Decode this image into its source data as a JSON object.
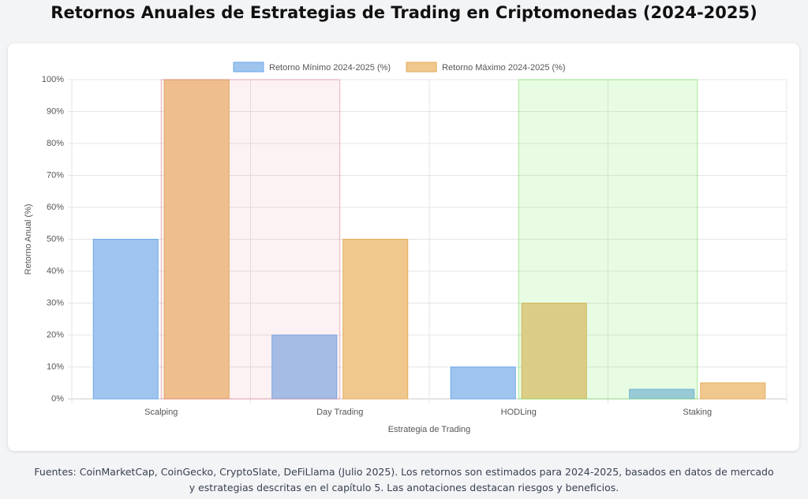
{
  "chart_data": {
    "type": "bar",
    "title": "Retornos Anuales de Estrategias de Trading en Criptomonedas (2024-2025)",
    "x_label": "Estrategia de Trading",
    "y_label": "Retorno Anual (%)",
    "categories": [
      "Scalping",
      "Day Trading",
      "HODLing",
      "Staking"
    ],
    "series": [
      {
        "name": "Retorno Mínimo 2024-2025 (%)",
        "color": "#9fc5ef",
        "border": "#6ea8e8",
        "values": [
          50,
          20,
          10,
          3
        ]
      },
      {
        "name": "Retorno Máximo 2024-2025 (%)",
        "color": "#f0c88e",
        "border": "#e3ab5c",
        "values": [
          100,
          50,
          30,
          5
        ]
      }
    ],
    "ylim": [
      0,
      100
    ],
    "yticks": [
      {
        "value": 0,
        "label": "0%"
      },
      {
        "value": 10,
        "label": "10%"
      },
      {
        "value": 20,
        "label": "20%"
      },
      {
        "value": 30,
        "label": "30%"
      },
      {
        "value": 40,
        "label": "40%"
      },
      {
        "value": 50,
        "label": "50%"
      },
      {
        "value": 60,
        "label": "60%"
      },
      {
        "value": 70,
        "label": "70%"
      },
      {
        "value": 80,
        "label": "80%"
      },
      {
        "value": 90,
        "label": "90%"
      },
      {
        "value": 100,
        "label": "100%"
      }
    ],
    "grid": true,
    "legend": "top",
    "annotations": [
      {
        "type": "box",
        "x_range": [
          0.5,
          1.5
        ],
        "color": "rgba(230,120,140,0.10)",
        "border": "rgba(220,120,140,0.55)"
      },
      {
        "type": "box",
        "x_range": [
          2.5,
          3.5
        ],
        "color": "rgba(120,230,90,0.17)",
        "border": "rgba(110,220,90,0.6)"
      }
    ],
    "footer": "Fuentes: CoinMarketCap, CoinGecko, CryptoSlate, DeFiLlama (Julio 2025). Los retornos son estimados para 2024-2025, basados en datos de mercado y estrategias descritas en el capítulo 5. Las anotaciones destacan riesgos y beneficios."
  }
}
